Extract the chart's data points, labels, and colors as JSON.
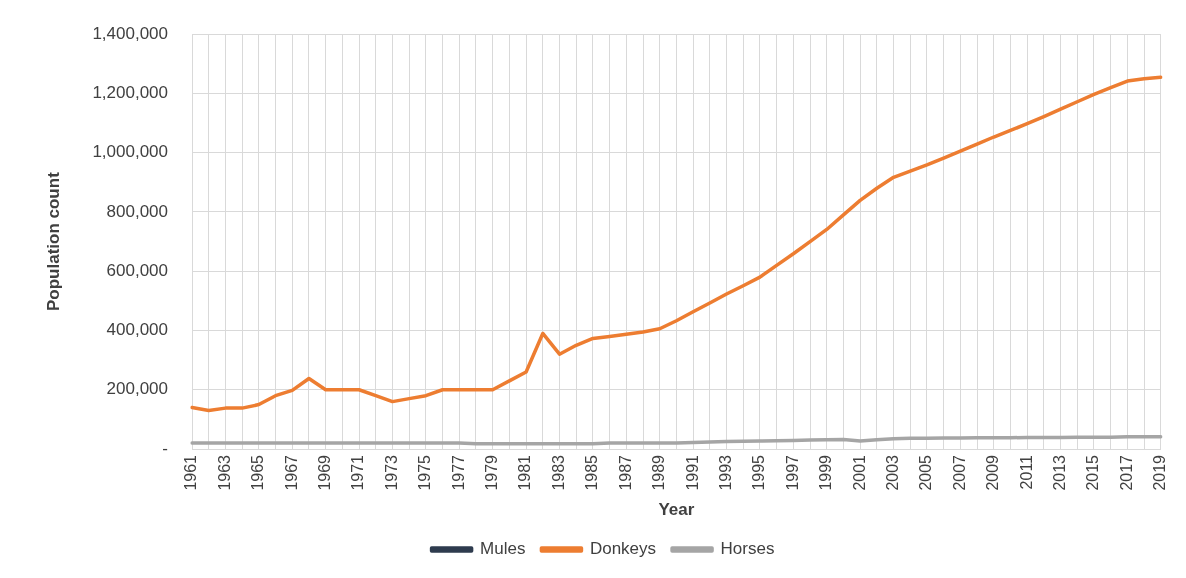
{
  "chart_data": {
    "type": "line",
    "xlabel": "Year",
    "ylabel": "Population count",
    "categories": [
      "1961",
      null,
      "1963",
      null,
      "1965",
      null,
      "1967",
      null,
      "1969",
      null,
      "1971",
      null,
      "1973",
      null,
      "1975",
      null,
      "1977",
      null,
      "1979",
      null,
      "1981",
      null,
      "1983",
      null,
      "1985",
      null,
      "1987",
      null,
      "1989",
      null,
      "1991",
      null,
      "1993",
      null,
      "1995",
      null,
      "1997",
      null,
      "1999",
      null,
      "2001",
      null,
      "2003",
      null,
      "2005",
      null,
      "2007",
      null,
      "2009",
      null,
      "2011",
      null,
      "2013",
      null,
      "2015",
      null,
      "2017",
      null,
      "2019"
    ],
    "series": [
      {
        "name": "Mules",
        "color": "#2e3b4e",
        "values": [
          null,
          null,
          null,
          null,
          null,
          null,
          null,
          null,
          null,
          null,
          null,
          null,
          null,
          null,
          null,
          null,
          null,
          null,
          null,
          null,
          null,
          null,
          null,
          null,
          null,
          null,
          null,
          null,
          null,
          null,
          null,
          null,
          null,
          null,
          null,
          null,
          null,
          null,
          null,
          null,
          null,
          null,
          null,
          null,
          null,
          null,
          null,
          null,
          null,
          null,
          null,
          null,
          null,
          null,
          null,
          null,
          null,
          null,
          null
        ]
      },
      {
        "name": "Donkeys",
        "color": "#ed7d31",
        "values": [
          140000,
          130000,
          138000,
          138000,
          150000,
          180000,
          198000,
          238000,
          200000,
          200000,
          200000,
          180000,
          160000,
          170000,
          180000,
          200000,
          200000,
          200000,
          200000,
          230000,
          260000,
          390000,
          320000,
          350000,
          373000,
          380000,
          387000,
          395000,
          406000,
          433000,
          463000,
          493000,
          523000,
          551000,
          580000,
          620000,
          659000,
          700000,
          741000,
          790000,
          839000,
          880000,
          917000,
          938000,
          959000,
          982000,
          1005000,
          1029000,
          1053000,
          1075000,
          1098000,
          1122000,
          1147000,
          1172000,
          1197000,
          1220000,
          1242000,
          1250000,
          1255000
        ]
      },
      {
        "name": "Horses",
        "color": "#a5a5a5",
        "values": [
          20000,
          20000,
          20000,
          20000,
          20000,
          20000,
          20000,
          20000,
          20000,
          20000,
          20000,
          20000,
          20000,
          20000,
          20000,
          20000,
          20000,
          18000,
          18000,
          18000,
          18000,
          18000,
          18000,
          18000,
          18000,
          20000,
          20000,
          20000,
          20000,
          20000,
          22000,
          24000,
          25000,
          26000,
          27000,
          28000,
          29000,
          30000,
          31000,
          32000,
          27000,
          31000,
          35000,
          36000,
          36000,
          37000,
          37000,
          38000,
          38000,
          38000,
          39000,
          39000,
          39000,
          40000,
          40000,
          40000,
          41000,
          41000,
          41000
        ]
      }
    ],
    "ylim": [
      0,
      1400000
    ],
    "yticks": [
      {
        "value": 0,
        "label": "-"
      },
      {
        "value": 200000,
        "label": "200,000"
      },
      {
        "value": 400000,
        "label": "400,000"
      },
      {
        "value": 600000,
        "label": "600,000"
      },
      {
        "value": 800000,
        "label": "800,000"
      },
      {
        "value": 1000000,
        "label": "1,000,000"
      },
      {
        "value": 1200000,
        "label": "1,200,000"
      },
      {
        "value": 1400000,
        "label": "1,400,000"
      }
    ],
    "grid": true,
    "legend": "bottom",
    "marker": "none",
    "line_style": "solid"
  }
}
